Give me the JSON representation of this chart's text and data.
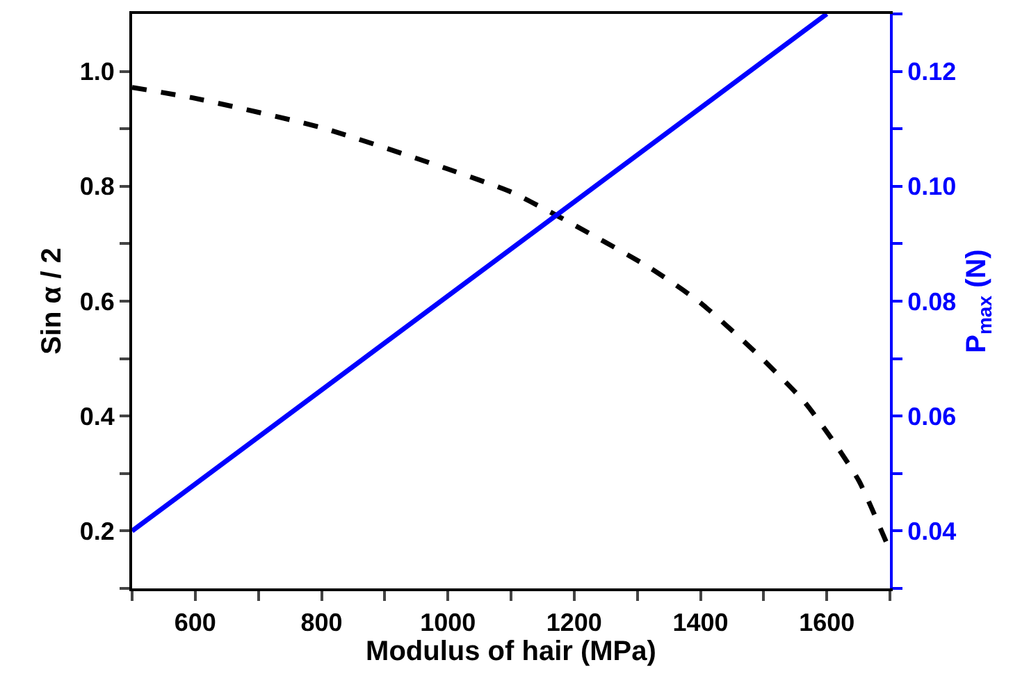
{
  "chart_data": {
    "type": "line",
    "xlabel": "Modulus of hair (MPa)",
    "ylabel": "Sin α / 2",
    "y2label": "P$_{max}$ (N)",
    "series": [
      {
        "color": "#000000",
        "line_style": "dashed",
        "x": [
          500,
          600,
          800,
          1000,
          1100,
          1176,
          1320,
          1399,
          1493,
          1565,
          1608,
          1651,
          1694
        ],
        "values": [
          0.972,
          0.953,
          0.902,
          0.83,
          0.79,
          0.747,
          0.658,
          0.598,
          0.505,
          0.424,
          0.36,
          0.287,
          0.181
        ]
      },
      {
        "color": "#0000ff",
        "line_style": "solid",
        "axis": "y2",
        "x": [
          500,
          1600
        ],
        "values": [
          0.04,
          0.13
        ]
      }
    ],
    "xlim": [
      500,
      1700
    ],
    "ylim": [
      0.1,
      1.1
    ],
    "y2lim": [
      0.03,
      0.13
    ],
    "xticks": [
      {
        "value": 500,
        "label": null
      },
      600,
      {
        "value": 700,
        "label": null
      },
      800,
      {
        "value": 900,
        "label": null
      },
      1000,
      {
        "value": 1100,
        "label": null
      },
      1200,
      {
        "value": 1300,
        "label": null
      },
      1400,
      {
        "value": 1500,
        "label": null
      },
      1600,
      {
        "value": 1700,
        "label": null
      }
    ],
    "yticks": [
      {
        "value": 0.1,
        "label": null
      },
      0.2,
      {
        "value": 0.3,
        "label": null
      },
      0.4,
      {
        "value": 0.5,
        "label": null
      },
      0.6,
      {
        "value": 0.7,
        "label": null
      },
      0.8,
      {
        "value": 0.9,
        "label": null
      },
      {
        "value": 1.0,
        "label": "1.0"
      }
    ],
    "y2ticks": [
      {
        "value": 0.03,
        "label": null
      },
      0.04,
      {
        "value": 0.05,
        "label": null
      },
      0.06,
      {
        "value": 0.07,
        "label": null
      },
      0.08,
      {
        "value": 0.09,
        "label": null
      },
      {
        "value": 0.1,
        "label": "0.10"
      },
      {
        "value": 0.11,
        "label": null
      },
      0.12,
      {
        "value": 0.13,
        "label": null
      }
    ]
  }
}
